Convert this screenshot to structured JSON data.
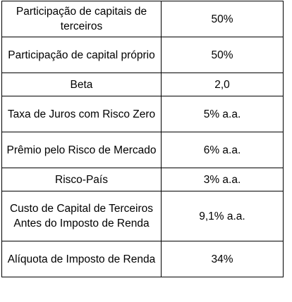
{
  "table": {
    "rows": [
      {
        "label": "Participação de capitais de terceiros",
        "value": "50%"
      },
      {
        "label": "Participação de capital próprio",
        "value": "50%"
      },
      {
        "label": "Beta",
        "value": "2,0"
      },
      {
        "label": "Taxa de Juros com Risco Zero",
        "value": "5% a.a."
      },
      {
        "label": "Prêmio pelo Risco de Mercado",
        "value": "6% a.a."
      },
      {
        "label": "Risco-País",
        "value": "3% a.a."
      },
      {
        "label": "Custo de Capital de Terceiros Antes do Imposto de Renda",
        "value": "9,1% a.a."
      },
      {
        "label": "Alíquota de Imposto de Renda",
        "value": "34%"
      }
    ]
  }
}
